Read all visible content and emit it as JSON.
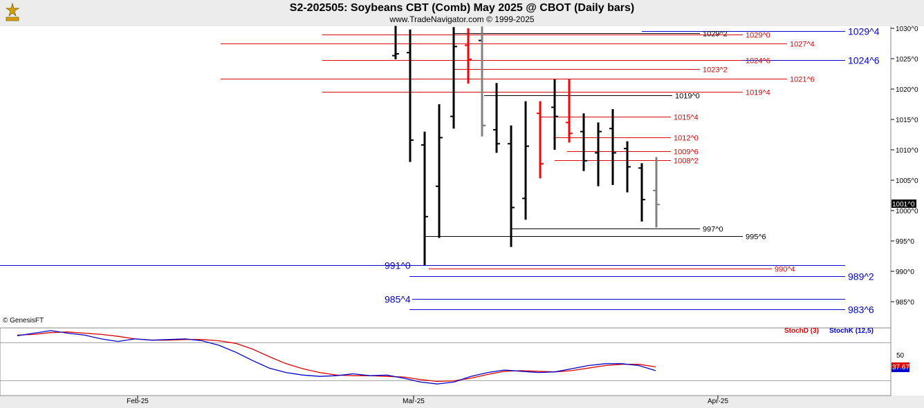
{
  "header": {
    "title": "S2-202505:  Soybeans CBT (Comb) May 2025 @ CBOT  (Daily bars)",
    "subtitle": "www.TradeNavigator.com © 1999-2025",
    "copyright": "© GenesisFT"
  },
  "colors": {
    "background": "#ffffff",
    "panel_bg": "#ececec",
    "up_bar": "#000000",
    "down_bar": "#ff0000",
    "neutral_bar": "#808080",
    "highlight_bar": "#00e000",
    "blue_level": "#0000cc",
    "red_level": "#dd0000",
    "black_level": "#000000",
    "stochD": "#dd0000",
    "stochK": "#0000cc"
  },
  "chart_data": [
    {
      "type": "ohlc",
      "x_labels": [
        "Feb-25",
        "Mar-25",
        "Apr-25"
      ],
      "y_ticks": [
        "1030^0",
        "1025^0",
        "1020^0",
        "1015^0",
        "1010^0",
        "1005^0",
        "1000^0",
        "995^0",
        "990^0",
        "985^0"
      ],
      "ylim": [
        981,
        1031
      ],
      "last_price_label": "1001^0",
      "bars": [
        {
          "c": "k",
          "h": 1030.4,
          "l": 1024.9,
          "o": 1025.5,
          "cl": 1025.8
        },
        {
          "c": "k",
          "h": 1029.8,
          "l": 1008.0,
          "o": 1026.0,
          "cl": 1011.6
        },
        {
          "c": "k",
          "h": 1013.0,
          "l": 991.0,
          "o": 1010.8,
          "cl": 999.0
        },
        {
          "c": "k",
          "h": 1017.5,
          "l": 995.5,
          "o": 1004.0,
          "cl": 1012.0
        },
        {
          "c": "k",
          "h": 1030.2,
          "l": 1013.5,
          "o": 1015.5,
          "cl": 1027.0
        },
        {
          "c": "r",
          "h": 1030.0,
          "l": 1020.9,
          "o": 1027.2,
          "cl": 1024.9
        },
        {
          "c": "g",
          "h": 1029.9,
          "l": 1012.4,
          "o": 1028.0,
          "cl": 1014.0
        },
        {
          "c": "k",
          "h": 1021.0,
          "l": 1009.5,
          "o": 1013.3,
          "cl": 1011.0
        },
        {
          "c": "k",
          "h": 1014.0,
          "l": 994.0,
          "o": 1011.0,
          "cl": 1000.5
        },
        {
          "c": "k",
          "h": 1018.0,
          "l": 998.5,
          "o": 1002.0,
          "cl": 1010.6
        },
        {
          "c": "r",
          "h": 1018.0,
          "l": 1005.3,
          "o": 1016.0,
          "cl": 1007.7
        },
        {
          "c": "k",
          "h": 1021.6,
          "l": 1010.0,
          "o": 1017.0,
          "cl": 1015.5
        },
        {
          "c": "r",
          "h": 1021.6,
          "l": 1011.2,
          "o": 1014.5,
          "cl": 1012.7
        },
        {
          "c": "k",
          "h": 1016.0,
          "l": 1006.5,
          "o": 1013.0,
          "cl": 1008.2
        },
        {
          "c": "k",
          "h": 1014.5,
          "l": 1004.0,
          "o": 1009.5,
          "cl": 1013.0
        },
        {
          "c": "k",
          "h": 1016.7,
          "l": 1004.2,
          "o": 1013.5,
          "cl": 1009.5
        },
        {
          "c": "k",
          "h": 1011.4,
          "l": 1003.0,
          "o": 1010.2,
          "cl": 1007.2
        },
        {
          "c": "k",
          "h": 1007.8,
          "l": 998.2,
          "o": 1007.0,
          "cl": 1001.8
        },
        {
          "c": "n",
          "h": 1008.8,
          "l": 997.2,
          "o": 1003.3,
          "cl": 1001.0
        }
      ],
      "levels": [
        {
          "label": "1029^4",
          "v": 1029.5,
          "c": "blue",
          "big": true
        },
        {
          "label": "1029^2",
          "v": 1029.25,
          "c": "black"
        },
        {
          "label": "1029^0",
          "v": 1029.0,
          "c": "red"
        },
        {
          "label": "1027^4",
          "v": 1027.5,
          "c": "red"
        },
        {
          "label": "1024^6",
          "v": 1024.75,
          "c": "blue",
          "big": true
        },
        {
          "label": "1024^6",
          "v": 1024.75,
          "c": "red"
        },
        {
          "label": "1023^2",
          "v": 1023.25,
          "c": "red"
        },
        {
          "label": "1021^6",
          "v": 1021.75,
          "c": "red"
        },
        {
          "label": "1019^4",
          "v": 1019.5,
          "c": "red"
        },
        {
          "label": "1019^0",
          "v": 1019.0,
          "c": "black"
        },
        {
          "label": "1015^4",
          "v": 1015.5,
          "c": "red"
        },
        {
          "label": "1012^0",
          "v": 1012.0,
          "c": "red"
        },
        {
          "label": "1009^6",
          "v": 1009.75,
          "c": "red"
        },
        {
          "label": "1008^2",
          "v": 1008.25,
          "c": "red"
        },
        {
          "label": "997^0",
          "v": 997.0,
          "c": "black"
        },
        {
          "label": "995^6",
          "v": 995.75,
          "c": "black"
        },
        {
          "label": "991^0",
          "v": 991.0,
          "c": "blue",
          "big": true
        },
        {
          "label": "990^4",
          "v": 990.5,
          "c": "red"
        },
        {
          "label": "989^2",
          "v": 989.25,
          "c": "blue",
          "big": true
        },
        {
          "label": "985^4",
          "v": 985.5,
          "c": "blue",
          "big": true
        },
        {
          "label": "983^6",
          "v": 983.75,
          "c": "blue",
          "big": true
        }
      ]
    },
    {
      "type": "line",
      "legend": [
        "StochD (3)",
        "StochK (12,5)"
      ],
      "y_ticks": [
        "50"
      ],
      "last_value_label": "37.67",
      "ylim": [
        0,
        100
      ],
      "series": [
        {
          "name": "StochD (3)",
          "values": [
            92,
            93,
            96,
            97,
            95,
            93,
            90,
            86,
            84,
            84,
            85,
            85,
            83,
            79,
            70,
            58,
            47,
            39,
            33,
            29,
            28,
            28,
            27,
            26,
            22,
            19,
            20,
            24,
            30,
            35,
            36,
            35,
            34,
            36,
            40,
            44,
            46,
            46,
            42
          ]
        },
        {
          "name": "StochK (12,5)",
          "values": [
            91,
            95,
            99,
            95,
            92,
            86,
            82,
            86,
            84,
            85,
            86,
            83,
            76,
            65,
            52,
            40,
            33,
            29,
            27,
            28,
            31,
            28,
            29,
            24,
            18,
            15,
            18,
            27,
            33,
            37,
            35,
            33,
            34,
            39,
            44,
            47,
            47,
            44,
            36
          ]
        }
      ]
    }
  ]
}
